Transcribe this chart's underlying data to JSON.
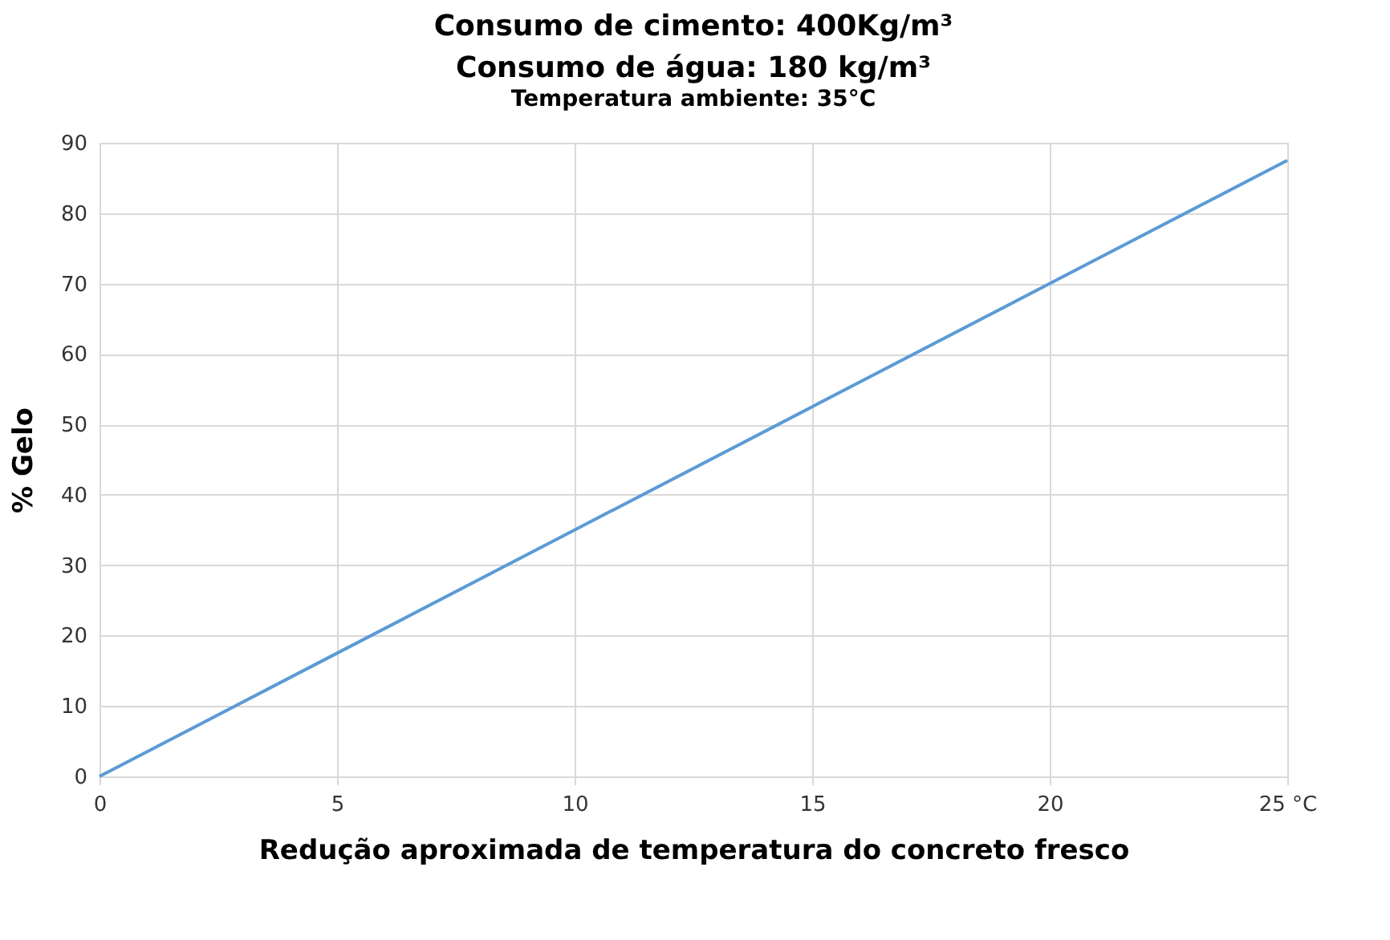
{
  "chart_data": {
    "type": "line",
    "title": "Consumo de cimento: 400Kg/m³\nConsumo de  água: 180 kg/m³",
    "subtitle": "Temperatura ambiente: 35°C",
    "xlabel": "Redução aproximada de temperatura do concreto fresco",
    "ylabel": "% Gelo",
    "series": [
      {
        "color": "#5b9bd5",
        "x": [
          0,
          5,
          10,
          15,
          20,
          25
        ],
        "values": [
          0,
          17.5,
          35,
          52.5,
          70,
          87.5
        ]
      }
    ],
    "xlim": [
      0,
      25
    ],
    "xticks": [
      0,
      5,
      10,
      15,
      20,
      {
        "value": 25,
        "label": "25 °C"
      }
    ],
    "ylim": [
      0,
      90
    ],
    "yticks": [
      0,
      10,
      20,
      30,
      40,
      50,
      60,
      70,
      80,
      90
    ],
    "grid": true,
    "marker": "none",
    "line_style": "solid"
  }
}
